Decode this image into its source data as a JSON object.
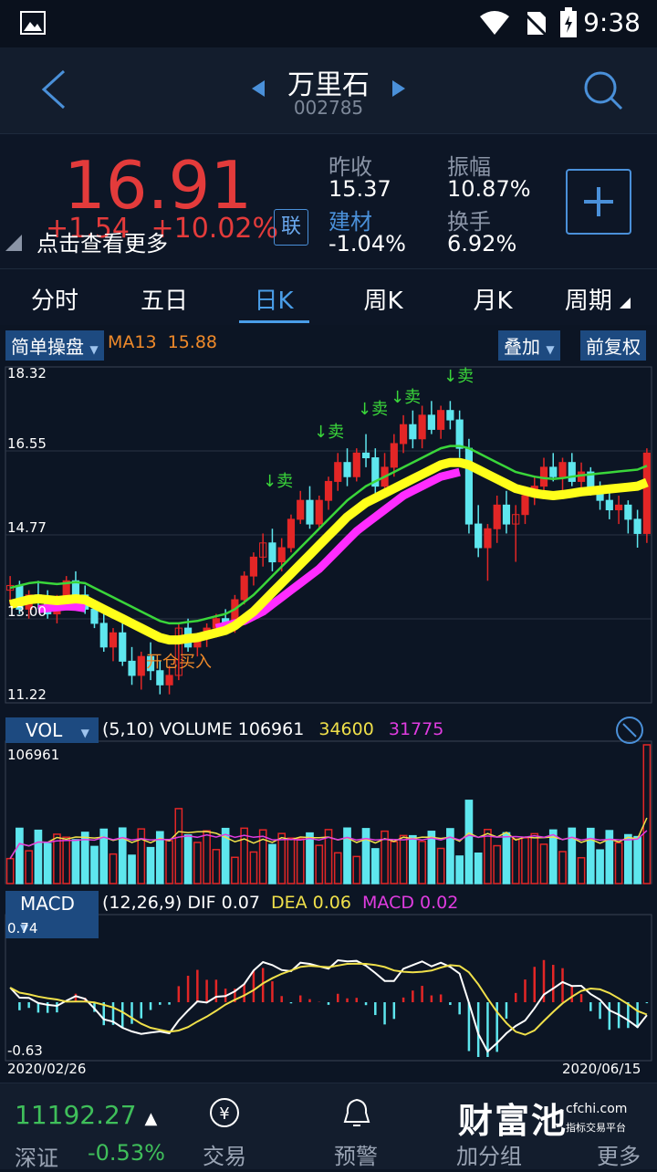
{
  "status": {
    "time": "9:38"
  },
  "header": {
    "title": "万里石",
    "code": "002785"
  },
  "quote": {
    "price": "16.91",
    "change": "+1.54",
    "change_pct": "+10.02%",
    "tip": "点击查看更多",
    "lian": "联",
    "prev_close_label": "昨收",
    "prev_close": "15.37",
    "amplitude_label": "振幅",
    "amplitude": "10.87%",
    "sector_label": "建材",
    "sector_pct": "-1.04%",
    "turnover_label": "换手",
    "turnover": "6.92%"
  },
  "tabs": [
    "分时",
    "五日",
    "日K",
    "周K",
    "月K",
    "周期"
  ],
  "active_tab": 2,
  "kline": {
    "indicator_btn": "简单操盘",
    "ma_label": "MA13",
    "ma_value": "15.88",
    "overlay_btn": "叠加",
    "adjust_btn": "前复权",
    "y_ticks": [
      "18.32",
      "16.55",
      "14.77",
      "13.00",
      "11.22"
    ],
    "signal_buy": "开仓买入",
    "signal_sell": "↓卖"
  },
  "volume": {
    "btn": "VOL",
    "params": "(5,10) VOLUME",
    "value": "106961",
    "ma5": "34600",
    "ma10": "31775",
    "max": "106961"
  },
  "macd": {
    "btn": "MACD",
    "params": "(12,26,9) DIF",
    "dif": "0.07",
    "dea_label": "DEA",
    "dea": "0.06",
    "macd_label": "MACD",
    "macd": "0.02",
    "top": "0.74",
    "bottom": "-0.63",
    "date_start": "2020/02/26",
    "date_end": "2020/06/15"
  },
  "bottom": {
    "index_value": "11192.27",
    "index_name": "深证",
    "index_pct": "-0.53%",
    "nav": [
      "交易",
      "预警",
      "加分组",
      "更多"
    ],
    "logo_text": "财富池",
    "logo_site": "cfchi.com",
    "logo_sub": "指标交易平台"
  },
  "chart_data": {
    "type": "candlestick",
    "ylim": [
      11.22,
      18.32
    ],
    "candles": [
      [
        13.6,
        13.9,
        13.3,
        13.7
      ],
      [
        13.7,
        13.8,
        13.1,
        13.2
      ],
      [
        13.2,
        13.6,
        13.0,
        13.5
      ],
      [
        13.5,
        13.8,
        13.2,
        13.4
      ],
      [
        13.4,
        13.6,
        13.0,
        13.1
      ],
      [
        13.1,
        13.5,
        12.9,
        13.4
      ],
      [
        13.4,
        13.9,
        13.3,
        13.8
      ],
      [
        13.8,
        14.0,
        13.4,
        13.5
      ],
      [
        13.5,
        13.7,
        13.1,
        13.2
      ],
      [
        13.2,
        13.4,
        12.8,
        12.9
      ],
      [
        12.9,
        13.1,
        12.3,
        12.4
      ],
      [
        12.4,
        12.8,
        12.1,
        12.7
      ],
      [
        12.7,
        12.9,
        12.0,
        12.1
      ],
      [
        12.1,
        12.4,
        11.6,
        11.8
      ],
      [
        11.8,
        12.3,
        11.5,
        12.2
      ],
      [
        12.2,
        12.5,
        11.7,
        11.9
      ],
      [
        11.9,
        12.1,
        11.4,
        11.6
      ],
      [
        11.6,
        12.0,
        11.4,
        11.8
      ],
      [
        11.8,
        12.9,
        11.7,
        12.8
      ],
      [
        12.8,
        13.0,
        12.3,
        12.4
      ],
      [
        12.4,
        12.7,
        12.2,
        12.6
      ],
      [
        12.6,
        12.9,
        12.4,
        12.8
      ],
      [
        12.8,
        13.1,
        12.6,
        13.0
      ],
      [
        13.0,
        13.2,
        12.7,
        12.8
      ],
      [
        12.8,
        13.5,
        12.7,
        13.4
      ],
      [
        13.4,
        14.0,
        13.3,
        13.9
      ],
      [
        13.9,
        14.4,
        13.7,
        14.3
      ],
      [
        14.3,
        14.8,
        14.1,
        14.6
      ],
      [
        14.6,
        14.9,
        14.0,
        14.2
      ],
      [
        14.2,
        14.7,
        14.0,
        14.5
      ],
      [
        14.5,
        15.2,
        14.4,
        15.1
      ],
      [
        15.1,
        15.7,
        15.0,
        15.5
      ],
      [
        15.5,
        15.8,
        14.9,
        15.0
      ],
      [
        15.0,
        15.6,
        14.9,
        15.5
      ],
      [
        15.5,
        16.0,
        15.3,
        15.9
      ],
      [
        15.9,
        16.5,
        15.7,
        16.3
      ],
      [
        16.3,
        16.6,
        15.8,
        16.0
      ],
      [
        16.0,
        16.6,
        15.9,
        16.5
      ],
      [
        16.5,
        16.9,
        16.2,
        16.4
      ],
      [
        16.4,
        16.6,
        15.6,
        15.8
      ],
      [
        15.8,
        16.5,
        15.6,
        16.2
      ],
      [
        16.2,
        16.9,
        16.0,
        16.7
      ],
      [
        16.7,
        17.3,
        16.5,
        17.1
      ],
      [
        17.1,
        17.4,
        16.6,
        16.8
      ],
      [
        16.8,
        17.5,
        16.6,
        17.3
      ],
      [
        17.3,
        17.6,
        16.9,
        17.0
      ],
      [
        17.0,
        17.5,
        16.8,
        17.4
      ],
      [
        17.4,
        17.6,
        17.0,
        17.2
      ],
      [
        17.2,
        17.4,
        16.4,
        16.6
      ],
      [
        16.6,
        16.8,
        14.8,
        15.0
      ],
      [
        15.0,
        15.4,
        14.3,
        14.5
      ],
      [
        14.5,
        15.0,
        13.8,
        14.9
      ],
      [
        14.9,
        15.6,
        14.6,
        15.4
      ],
      [
        15.4,
        15.7,
        14.8,
        15.0
      ],
      [
        15.0,
        15.4,
        14.2,
        15.2
      ],
      [
        15.2,
        15.8,
        15.0,
        15.6
      ],
      [
        15.6,
        16.0,
        15.4,
        15.8
      ],
      [
        15.8,
        16.4,
        15.6,
        16.2
      ],
      [
        16.2,
        16.5,
        15.9,
        16.0
      ],
      [
        16.0,
        16.4,
        15.7,
        16.3
      ],
      [
        16.3,
        16.5,
        15.8,
        15.9
      ],
      [
        15.9,
        16.3,
        15.7,
        16.1
      ],
      [
        16.1,
        16.2,
        15.6,
        15.7
      ],
      [
        15.7,
        15.9,
        15.3,
        15.5
      ],
      [
        15.5,
        15.7,
        15.1,
        15.3
      ],
      [
        15.3,
        15.6,
        15.0,
        15.4
      ],
      [
        15.4,
        15.5,
        14.8,
        15.1
      ],
      [
        15.1,
        15.3,
        14.5,
        14.8
      ],
      [
        14.8,
        16.6,
        14.6,
        16.5
      ]
    ],
    "ma_yellow": [
      13.3,
      13.35,
      13.4,
      13.42,
      13.4,
      13.38,
      13.4,
      13.42,
      13.4,
      13.3,
      13.2,
      13.1,
      13.0,
      12.9,
      12.8,
      12.7,
      12.6,
      12.55,
      12.55,
      12.58,
      12.6,
      12.65,
      12.7,
      12.75,
      12.85,
      13.0,
      13.15,
      13.35,
      13.55,
      13.75,
      13.95,
      14.15,
      14.35,
      14.55,
      14.75,
      14.95,
      15.15,
      15.3,
      15.45,
      15.55,
      15.65,
      15.75,
      15.85,
      15.95,
      16.05,
      16.15,
      16.25,
      16.3,
      16.3,
      16.25,
      16.15,
      16.05,
      15.95,
      15.85,
      15.75,
      15.7,
      15.65,
      15.62,
      15.6,
      15.62,
      15.65,
      15.68,
      15.7,
      15.72,
      15.74,
      15.76,
      15.78,
      15.8,
      15.88
    ],
    "ma_magenta": [
      null,
      null,
      null,
      13.2,
      13.22,
      13.24,
      13.26,
      13.25,
      13.22,
      null,
      null,
      null,
      null,
      null,
      null,
      null,
      null,
      null,
      null,
      null,
      null,
      null,
      12.8,
      12.85,
      12.9,
      12.95,
      13.05,
      13.15,
      13.3,
      13.45,
      13.6,
      13.75,
      13.9,
      14.05,
      14.25,
      14.45,
      14.65,
      14.85,
      15.0,
      15.15,
      15.3,
      15.45,
      15.6,
      15.7,
      15.8,
      15.9,
      16.0,
      16.05,
      16.1
    ],
    "vol_max": 106961
  }
}
